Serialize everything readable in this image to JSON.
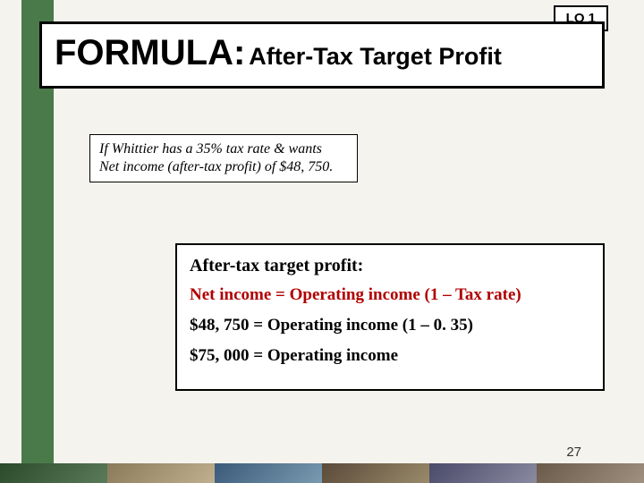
{
  "lo_badge": "LO 1",
  "title": {
    "main": "FORMULA:",
    "sub": " After-Tax Target Profit"
  },
  "scenario": {
    "line1": "If Whittier has a 35% tax rate & wants",
    "line2": "Net income (after-tax profit) of $48, 750."
  },
  "formula": {
    "heading": "After-tax target profit:",
    "equation": "Net income = Operating income (1 – Tax rate)",
    "step1": "$48, 750 = Operating income (1 – 0. 35)",
    "step2": "$75, 000 = Operating income"
  },
  "page_number": "27",
  "colors": {
    "background": "#f5f3ed",
    "green_bar": "#4a7a4a",
    "border": "#000000",
    "equation_highlight": "#b00000"
  }
}
